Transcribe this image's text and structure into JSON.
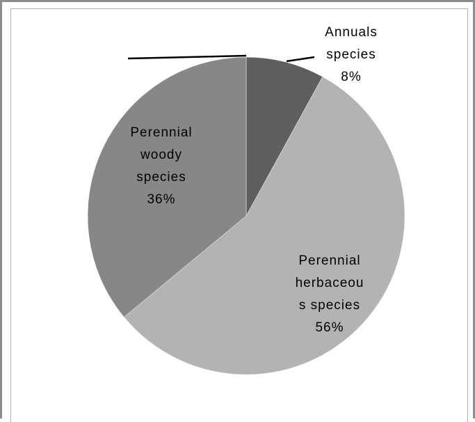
{
  "chart_data": {
    "type": "pie",
    "start_angle_deg": 0,
    "direction": "clockwise",
    "slices": [
      {
        "label_lines": [
          "Annuals",
          "species",
          "8%"
        ],
        "value": 8,
        "color": "#5f5f5f"
      },
      {
        "label_lines": [
          "Perennial",
          "herbaceou",
          "s species",
          "56%"
        ],
        "value": 56,
        "color": "#b3b3b3"
      },
      {
        "label_lines": [
          "Perennial",
          "woody",
          "species",
          "36%"
        ],
        "value": 36,
        "color": "#878787"
      }
    ],
    "title": "",
    "legend": "none"
  }
}
